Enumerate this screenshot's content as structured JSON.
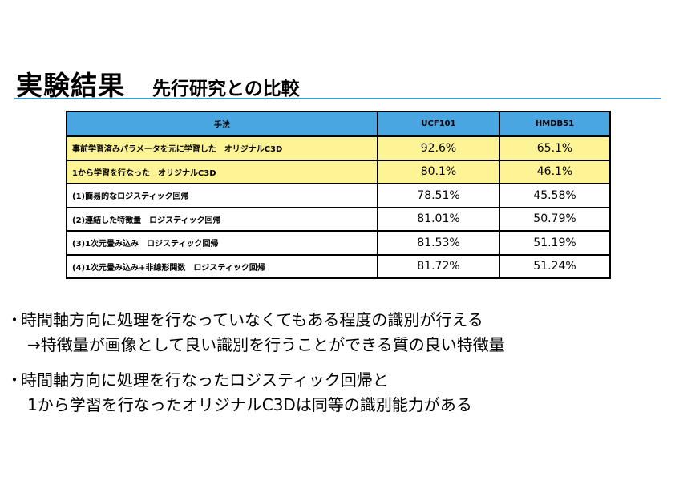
{
  "slide": {
    "title": "実験結果",
    "subtitle": "先行研究との比較"
  },
  "table": {
    "headers": [
      "手法",
      "UCF101",
      "HMDB51"
    ],
    "rows": [
      {
        "method": "事前学習済みパラメータを元に学習した　オリジナルC3D",
        "ucf": "92.6%",
        "hmdb": "65.1%",
        "highlight": true
      },
      {
        "method": "1から学習を行なった　オリジナルC3D",
        "ucf": "80.1%",
        "hmdb": "46.1%",
        "highlight": true
      },
      {
        "method": "(1)簡易的なロジスティック回帰",
        "ucf": "78.51%",
        "hmdb": "45.58%",
        "highlight": false
      },
      {
        "method": "(2)連結した特徴量　ロジスティック回帰",
        "ucf": "81.01%",
        "hmdb": "50.79%",
        "highlight": false
      },
      {
        "method": "(3)1次元畳み込み　ロジスティック回帰",
        "ucf": "81.53%",
        "hmdb": "51.19%",
        "highlight": false
      },
      {
        "method": "(4)1次元畳み込み+非線形関数　ロジスティック回帰",
        "ucf": "81.72%",
        "hmdb": "51.24%",
        "highlight": false
      }
    ],
    "colors": {
      "header_bg": "#4aa6e0",
      "highlight_bg": "#fff495",
      "rule": "#3b9bd6"
    }
  },
  "bullets": [
    {
      "marker": "・",
      "line1": "時間軸方向に処理を行なっていなくてもある程度の識別が行える",
      "line2": "→特徴量が画像として良い識別を行うことができる質の良い特徴量"
    },
    {
      "marker": "・",
      "line1": "時間軸方向に処理を行なったロジスティック回帰と",
      "line2": "1から学習を行なったオリジナルC3Dは同等の識別能力がある"
    }
  ]
}
